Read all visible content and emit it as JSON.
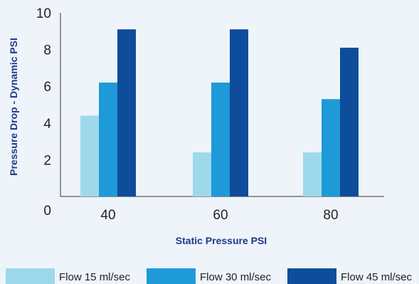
{
  "chart_data": {
    "type": "bar",
    "categories": [
      "40",
      "60",
      "80"
    ],
    "series": [
      {
        "name": "Flow 15 ml/sec",
        "values": [
          4.4,
          2.4,
          2.4
        ],
        "color": "#9dd9eb"
      },
      {
        "name": "Flow 30 ml/sec",
        "values": [
          6.2,
          6.2,
          5.3
        ],
        "color": "#1e9ad8"
      },
      {
        "name": "Flow 45 ml/sec",
        "values": [
          9.1,
          9.1,
          8.1
        ],
        "color": "#0d4d9a"
      }
    ],
    "title": "",
    "xlabel": "Static Pressure PSI",
    "ylabel": "Pressure Drop - Dynamic PSI",
    "ylim": [
      0,
      10
    ],
    "yticks": [
      0,
      2,
      4,
      6,
      8,
      10
    ],
    "grid": false,
    "legend": "bottom"
  }
}
